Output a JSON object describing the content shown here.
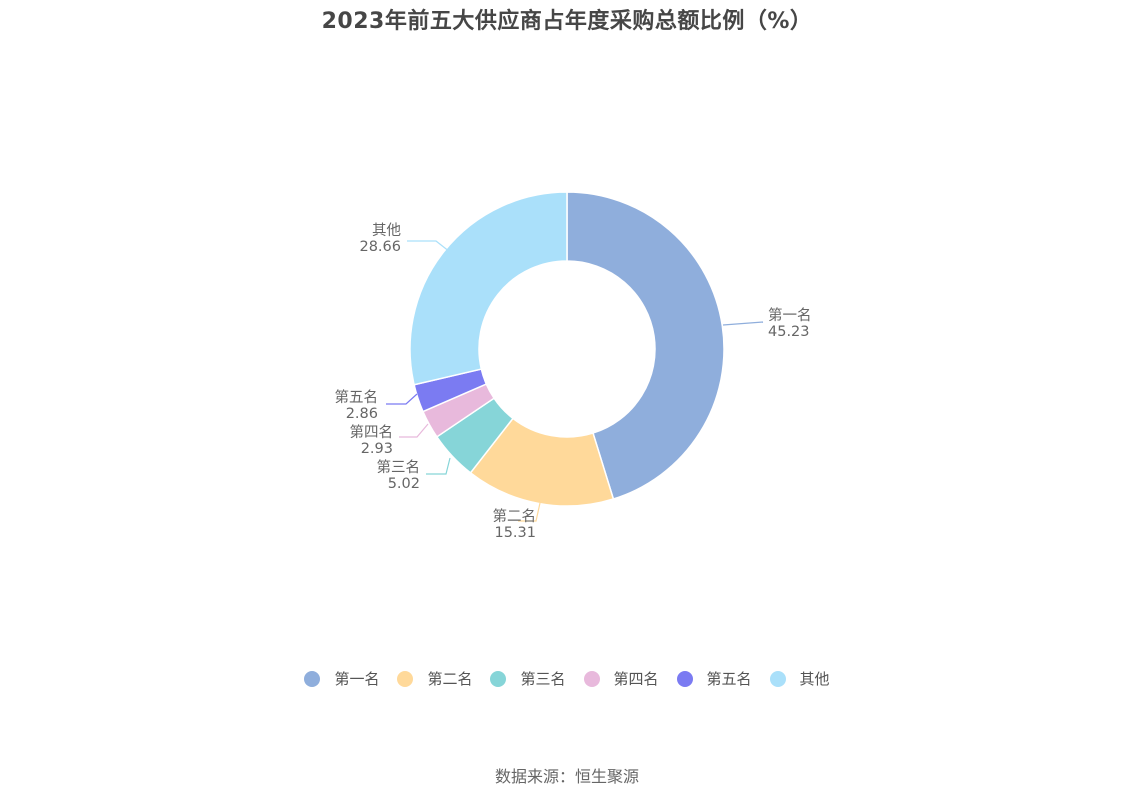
{
  "title": "2023年前五大供应商占年度采购总额比例（%）",
  "source": "数据来源：恒生聚源",
  "legend": [
    {
      "label": "第一名",
      "color": "#8faedc"
    },
    {
      "label": "第二名",
      "color": "#ffd99a"
    },
    {
      "label": "第三名",
      "color": "#86d5d8"
    },
    {
      "label": "第四名",
      "color": "#e8b9dc"
    },
    {
      "label": "第五名",
      "color": "#7b7bf2"
    },
    {
      "label": "其他",
      "color": "#aae0fa"
    }
  ],
  "chart_data": {
    "type": "pie",
    "variant": "donut",
    "title": "2023年前五大供应商占年度采购总额比例（%）",
    "categories": [
      "第一名",
      "第二名",
      "第三名",
      "第四名",
      "第五名",
      "其他"
    ],
    "values": [
      45.23,
      15.31,
      5.02,
      2.93,
      2.86,
      28.66
    ],
    "colors": [
      "#8faedc",
      "#ffd99a",
      "#86d5d8",
      "#e8b9dc",
      "#7b7bf2",
      "#aae0fa"
    ],
    "unit": "%",
    "legend_position": "bottom",
    "source": "数据来源：恒生聚源"
  }
}
